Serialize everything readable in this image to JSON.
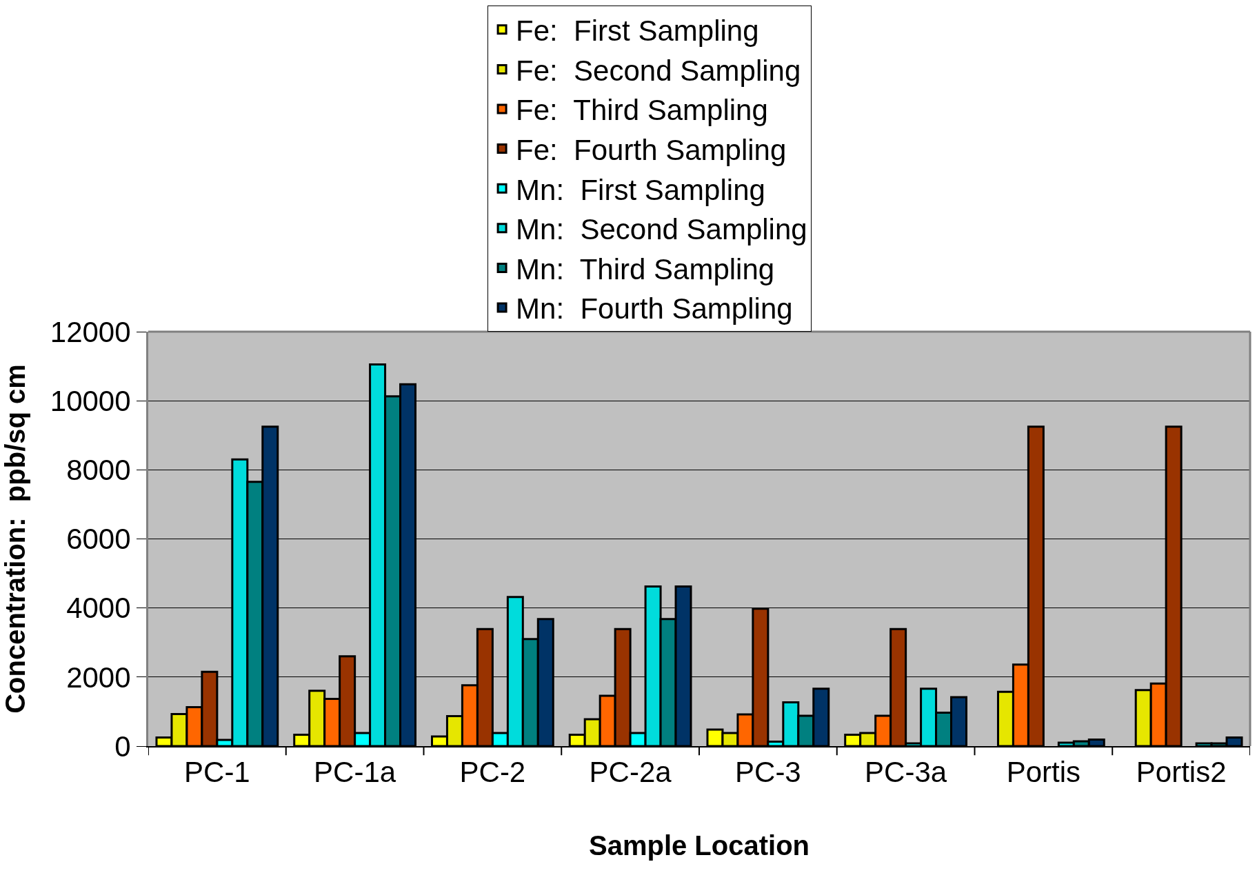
{
  "chart_data": {
    "type": "bar",
    "xlabel": "Sample Location",
    "ylabel": "Concentration:  ppb/sq cm",
    "categories": [
      "PC-1",
      "PC-1a",
      "PC-2",
      "PC-2a",
      "PC-3",
      "PC-3a",
      "Portis",
      "Portis2"
    ],
    "series": [
      {
        "name": "Fe:  First Sampling",
        "color": "#ffff00",
        "values": [
          250,
          330,
          280,
          330,
          480,
          330,
          null,
          null
        ]
      },
      {
        "name": "Fe:  Second Sampling",
        "color": "#e6e600",
        "values": [
          930,
          1600,
          870,
          780,
          380,
          380,
          1570,
          1620
        ]
      },
      {
        "name": "Fe:  Third Sampling",
        "color": "#ff6600",
        "values": [
          1130,
          1370,
          1760,
          1460,
          920,
          880,
          2360,
          1810
        ]
      },
      {
        "name": "Fe:  Fourth Sampling",
        "color": "#993300",
        "values": [
          2150,
          2600,
          3390,
          3390,
          3980,
          3390,
          9250,
          9250
        ]
      },
      {
        "name": "Mn:  First Sampling",
        "color": "#00ffff",
        "values": [
          180,
          380,
          380,
          380,
          130,
          80,
          null,
          null
        ]
      },
      {
        "name": "Mn:  Second Sampling",
        "color": "#00dcdc",
        "values": [
          8300,
          11050,
          4320,
          4620,
          1270,
          1660,
          100,
          80
        ]
      },
      {
        "name": "Mn:  Third Sampling",
        "color": "#008080",
        "values": [
          7650,
          10130,
          3100,
          3680,
          880,
          970,
          140,
          80
        ]
      },
      {
        "name": "Mn:  Fourth Sampling",
        "color": "#003366",
        "values": [
          9250,
          10480,
          3680,
          4620,
          1660,
          1420,
          190,
          250
        ]
      }
    ],
    "ylim": [
      0,
      12000
    ],
    "yticks": [
      0,
      2000,
      4000,
      6000,
      8000,
      10000,
      12000
    ],
    "grid": "y",
    "legend": "top"
  }
}
